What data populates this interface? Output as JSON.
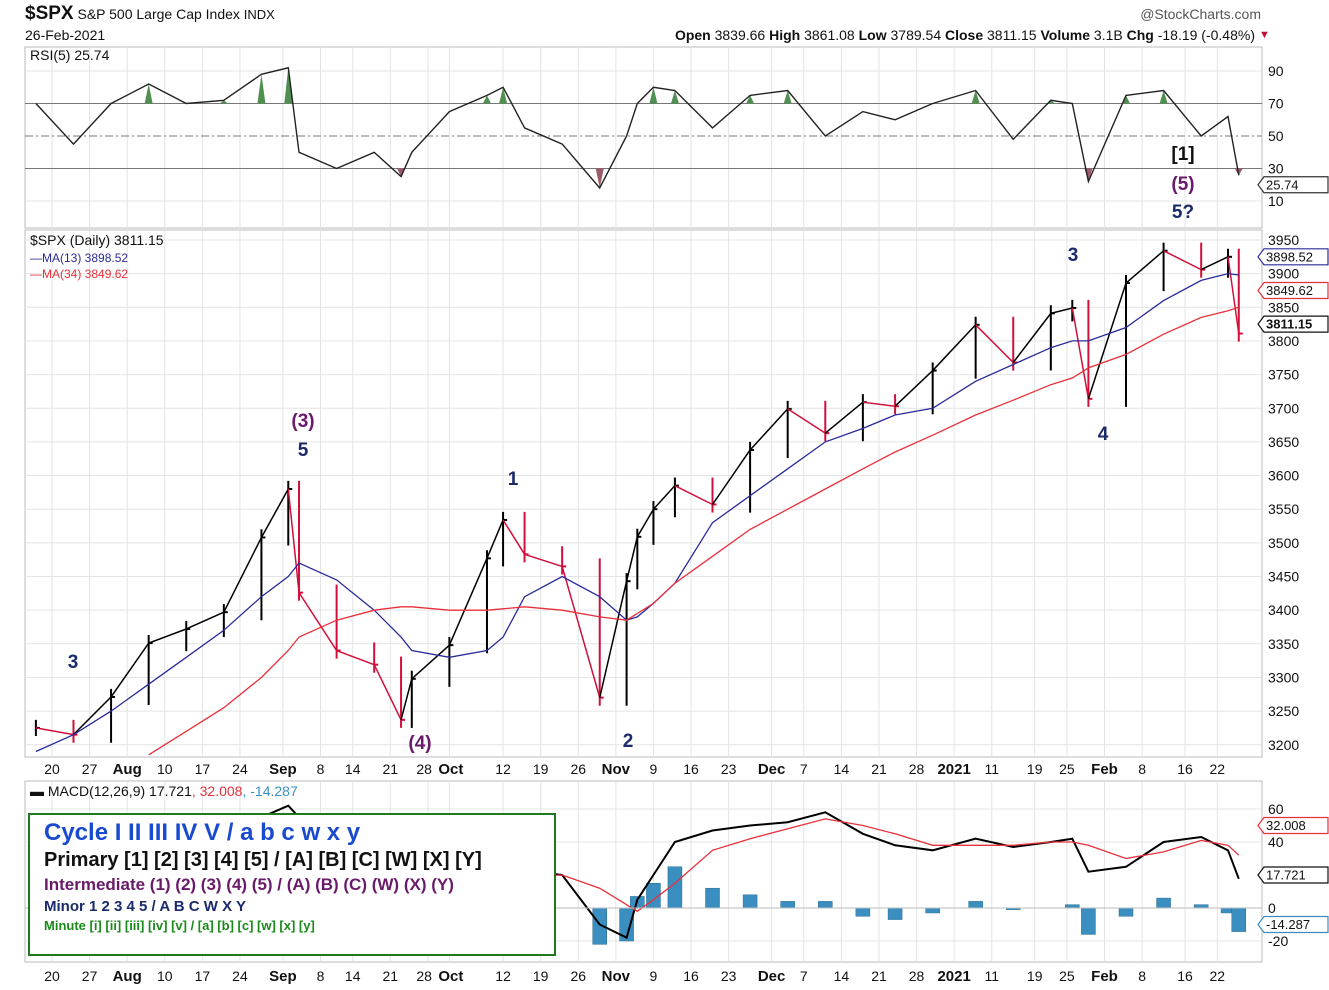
{
  "header": {
    "symbol": "$SPX",
    "name": "S&P 500 Large Cap Index",
    "exchange": "INDX",
    "date": "26-Feb-2021",
    "brand": "@StockCharts.com",
    "open_label": "Open",
    "open": "3839.66",
    "high_label": "High",
    "high": "3861.08",
    "low_label": "Low",
    "low": "3789.54",
    "close_label": "Close",
    "close": "3811.15",
    "volume_label": "Volume",
    "volume": "3.1B",
    "chg_label": "Chg",
    "chg": "-18.19 (-0.48%)",
    "chg_direction": "down"
  },
  "colors": {
    "up": "#000000",
    "down": "#d0103a",
    "ma13": "#2a2a9a",
    "ma34": "#e8303a",
    "macd": "#000000",
    "signal": "#e8303a",
    "hist": "#3a8fc0",
    "rsi_fill_high": "#4f8f4f",
    "rsi_fill_low": "#9a5a6a",
    "legend_border": "#1f7a1f"
  },
  "rsi_panel": {
    "title": "RSI(5) 25.74",
    "value_box": "25.74",
    "ticks": [
      90,
      70,
      50,
      30,
      10
    ],
    "ylim": [
      0,
      100
    ]
  },
  "price_panel": {
    "title": "$SPX (Daily) 3811.15",
    "ma13_label": "MA(13) 3898.52",
    "ma34_label": "MA(34) 3849.62",
    "boxes": {
      "ma13": "3898.52",
      "ma34": "3849.62",
      "close": "3811.15"
    },
    "ticks": [
      3950,
      3900,
      3850,
      3800,
      3750,
      3700,
      3650,
      3600,
      3550,
      3500,
      3450,
      3400,
      3350,
      3300,
      3250,
      3200
    ],
    "ylim": [
      3170,
      3975
    ]
  },
  "macd_panel": {
    "title_prefix": "MACD(12,26,9) 17.721",
    "title_signal": ", 32.008",
    "title_hist": ", -14.287",
    "boxes": {
      "signal": "32.008",
      "macd": "17.721",
      "hist": "-14.287"
    },
    "ticks": [
      60,
      40,
      0,
      -20
    ],
    "ylim": [
      -32,
      72
    ]
  },
  "x_ticks": [
    {
      "label": "20",
      "date": "2020-07-20"
    },
    {
      "label": "27",
      "date": "2020-07-27"
    },
    {
      "label": "Aug",
      "date": "2020-08-03",
      "bold": true
    },
    {
      "label": "10",
      "date": "2020-08-10"
    },
    {
      "label": "17",
      "date": "2020-08-17"
    },
    {
      "label": "24",
      "date": "2020-08-24"
    },
    {
      "label": "Sep",
      "date": "2020-09-01",
      "bold": true
    },
    {
      "label": "8",
      "date": "2020-09-08"
    },
    {
      "label": "14",
      "date": "2020-09-14"
    },
    {
      "label": "21",
      "date": "2020-09-21"
    },
    {
      "label": "28",
      "date": "2020-09-28"
    },
    {
      "label": "Oct",
      "date": "2020-10-02",
      "bold": true
    },
    {
      "label": "12",
      "date": "2020-10-12"
    },
    {
      "label": "19",
      "date": "2020-10-19"
    },
    {
      "label": "26",
      "date": "2020-10-26"
    },
    {
      "label": "Nov",
      "date": "2020-11-02",
      "bold": true
    },
    {
      "label": "9",
      "date": "2020-11-09"
    },
    {
      "label": "16",
      "date": "2020-11-16"
    },
    {
      "label": "23",
      "date": "2020-11-23"
    },
    {
      "label": "Dec",
      "date": "2020-12-01",
      "bold": true
    },
    {
      "label": "7",
      "date": "2020-12-07"
    },
    {
      "label": "14",
      "date": "2020-12-14"
    },
    {
      "label": "21",
      "date": "2020-12-21"
    },
    {
      "label": "28",
      "date": "2020-12-28"
    },
    {
      "label": "2021",
      "date": "2021-01-04",
      "bold": true
    },
    {
      "label": "11",
      "date": "2021-01-11"
    },
    {
      "label": "19",
      "date": "2021-01-19"
    },
    {
      "label": "25",
      "date": "2021-01-25"
    },
    {
      "label": "Feb",
      "date": "2021-02-01",
      "bold": true
    },
    {
      "label": "8",
      "date": "2021-02-08"
    },
    {
      "label": "16",
      "date": "2021-02-16"
    },
    {
      "label": "22",
      "date": "2021-02-22"
    }
  ],
  "annotations": [
    {
      "text": "3",
      "color": "#1a2a6a"
    },
    {
      "text": "(3)",
      "color": "#6a1a6a"
    },
    {
      "text": "5",
      "color": "#1a2a6a"
    },
    {
      "text": "(4)",
      "color": "#6a1a6a"
    },
    {
      "text": "1",
      "color": "#1a2a6a"
    },
    {
      "text": "2",
      "color": "#1a2a6a"
    },
    {
      "text": "3",
      "color": "#1a2a6a"
    },
    {
      "text": "4",
      "color": "#1a2a6a"
    },
    {
      "text": "[1]",
      "color": "#111111"
    },
    {
      "text": "(5)",
      "color": "#6a1a6a"
    },
    {
      "text": "5?",
      "color": "#1a2a6a"
    }
  ],
  "legend": {
    "cycle": "Cycle I II III IV V / a b c w x y",
    "primary": "Primary [1] [2] [3] [4] [5] / [A] [B] [C] [W] [X] [Y]",
    "intermediate": "Intermediate (1) (2) (3) (4) (5) / (A) (B) (C) (W) (X) (Y)",
    "minor": "Minor 1 2 3 4 5 / A B C W X Y",
    "minute": "Minute [i] [ii] [iii] [iv] [v] / [a] [b] [c] [w] [x] [y]"
  },
  "chart_data": {
    "type": "line",
    "dates": [
      "2020-07-17",
      "2020-07-24",
      "2020-07-31",
      "2020-08-07",
      "2020-08-14",
      "2020-08-21",
      "2020-08-28",
      "2020-09-02",
      "2020-09-04",
      "2020-09-11",
      "2020-09-18",
      "2020-09-23",
      "2020-09-25",
      "2020-10-02",
      "2020-10-09",
      "2020-10-12",
      "2020-10-16",
      "2020-10-23",
      "2020-10-30",
      "2020-11-04",
      "2020-11-06",
      "2020-11-09",
      "2020-11-13",
      "2020-11-20",
      "2020-11-27",
      "2020-12-04",
      "2020-12-11",
      "2020-12-18",
      "2020-12-24",
      "2020-12-31",
      "2021-01-08",
      "2021-01-15",
      "2021-01-22",
      "2021-01-26",
      "2021-01-29",
      "2021-02-05",
      "2021-02-12",
      "2021-02-19",
      "2021-02-24",
      "2021-02-26"
    ],
    "series": [
      {
        "name": "$SPX (Daily)",
        "values": [
          3225,
          3215,
          3271,
          3351,
          3372,
          3397,
          3508,
          3580,
          3426,
          3340,
          3319,
          3237,
          3298,
          3348,
          3477,
          3534,
          3483,
          3465,
          3270,
          3443,
          3509,
          3550,
          3585,
          3557,
          3638,
          3699,
          3663,
          3709,
          3703,
          3756,
          3824,
          3768,
          3841,
          3849,
          3714,
          3886,
          3934,
          3906,
          3925,
          3811
        ]
      },
      {
        "name": "MA(13)",
        "values": [
          3190,
          3215,
          3250,
          3290,
          3330,
          3370,
          3420,
          3450,
          3470,
          3445,
          3400,
          3360,
          3340,
          3330,
          3340,
          3360,
          3420,
          3450,
          3420,
          3385,
          3390,
          3410,
          3440,
          3530,
          3570,
          3610,
          3650,
          3670,
          3690,
          3700,
          3740,
          3765,
          3790,
          3800,
          3800,
          3820,
          3860,
          3890,
          3900,
          3898
        ]
      },
      {
        "name": "MA(34)",
        "values": [
          null,
          null,
          null,
          3185,
          3220,
          3255,
          3300,
          3340,
          3360,
          3385,
          3400,
          3405,
          3405,
          3400,
          3400,
          3402,
          3405,
          3400,
          3390,
          3385,
          3395,
          3410,
          3440,
          3480,
          3520,
          3550,
          3580,
          3610,
          3635,
          3660,
          3690,
          3712,
          3735,
          3745,
          3760,
          3780,
          3810,
          3835,
          3845,
          3850
        ]
      },
      {
        "name": "RSI(5)",
        "values": [
          70,
          45,
          70,
          82,
          70,
          72,
          88,
          92,
          40,
          30,
          40,
          25,
          40,
          65,
          75,
          80,
          55,
          45,
          18,
          50,
          70,
          80,
          78,
          55,
          75,
          78,
          50,
          65,
          60,
          70,
          78,
          48,
          72,
          70,
          22,
          75,
          78,
          50,
          62,
          25.74
        ]
      },
      {
        "name": "MACD",
        "values": [
          30,
          28,
          33,
          40,
          42,
          44,
          55,
          62,
          55,
          45,
          30,
          10,
          8,
          5,
          18,
          25,
          23,
          20,
          -10,
          -18,
          5,
          20,
          40,
          47,
          50,
          52,
          58,
          45,
          38,
          35,
          42,
          37,
          40,
          42,
          22,
          25,
          40,
          43,
          35,
          17.721
        ]
      },
      {
        "name": "Signal",
        "values": [
          27,
          27,
          29,
          33,
          37,
          40,
          45,
          50,
          53,
          50,
          42,
          30,
          25,
          18,
          18,
          19,
          19,
          20,
          12,
          2,
          -2,
          5,
          15,
          35,
          42,
          48,
          54,
          50,
          45,
          38,
          38,
          38,
          40,
          40,
          38,
          30,
          34,
          41,
          38,
          32.008
        ]
      }
    ]
  }
}
